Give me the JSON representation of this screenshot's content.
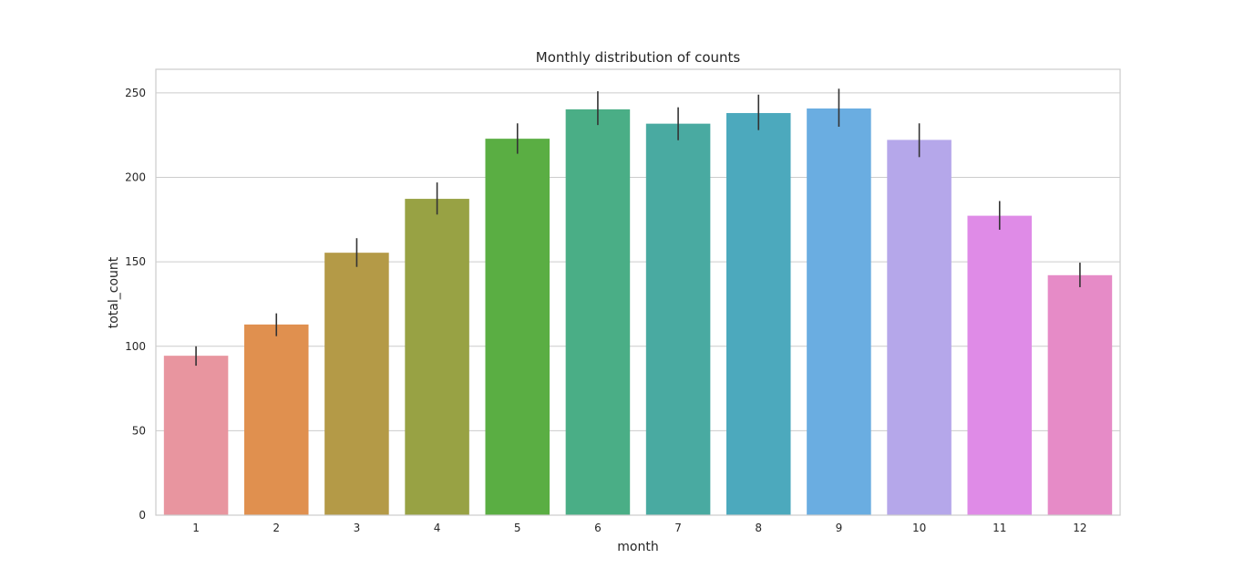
{
  "chart_data": {
    "type": "bar",
    "title": "Monthly distribution of counts",
    "xlabel": "month",
    "ylabel": "total_count",
    "categories": [
      "1",
      "2",
      "3",
      "4",
      "5",
      "6",
      "7",
      "8",
      "9",
      "10",
      "11",
      "12"
    ],
    "values": [
      94.4,
      112.9,
      155.4,
      187.3,
      222.9,
      240.3,
      231.8,
      238.1,
      240.8,
      222.2,
      177.3,
      142.1
    ],
    "error_low": [
      88.5,
      106.0,
      147.0,
      178.0,
      214.0,
      231.0,
      222.0,
      228.0,
      230.0,
      212.0,
      169.0,
      135.0
    ],
    "error_high": [
      100.0,
      119.5,
      164.0,
      197.0,
      232.0,
      251.0,
      241.5,
      249.0,
      252.5,
      232.0,
      186.0,
      149.5
    ],
    "colors": [
      "#e8959f",
      "#e0904f",
      "#b49a47",
      "#98a244",
      "#5aae43",
      "#4aae86",
      "#49aaa1",
      "#4ca9bd",
      "#6aade1",
      "#b5a7ea",
      "#df8be7",
      "#e68bc7"
    ],
    "ylim": [
      0,
      264
    ],
    "yticks": [
      0,
      50,
      100,
      150,
      200,
      250
    ],
    "grid": true,
    "legend": "none"
  }
}
